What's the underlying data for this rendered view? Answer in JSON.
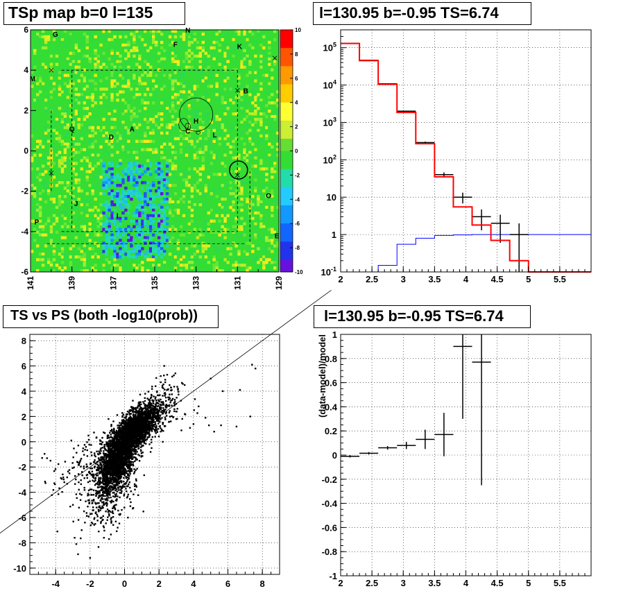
{
  "panels": {
    "map_title": "TSp map b=0 l=135",
    "spectrum_title": "l=130.95 b=-0.95 TS=6.74",
    "scatter_title": "TS vs PS (both -log10(prob))",
    "residual_title": "l=130.95 b=-0.95 TS=6.74"
  },
  "colors": {
    "data": "#000000",
    "model": "#ff0000",
    "background_model": "#0000ff",
    "map_field": "#33dd33"
  },
  "chart_data": [
    {
      "type": "heatmap",
      "title": "TSp map b=0 l=135",
      "x_ticks": [
        "141",
        "139",
        "137",
        "135",
        "133",
        "131",
        "129"
      ],
      "y_ticks": [
        "6",
        "4",
        "2",
        "0",
        "-2",
        "-4",
        "-6"
      ],
      "xlim": [
        141,
        129
      ],
      "ylim": [
        -6,
        6
      ],
      "colorbar": {
        "min": -10,
        "max": 10,
        "ticks": [
          "10",
          "8",
          "6",
          "4",
          "2",
          "0",
          "-2",
          "-4",
          "-6",
          "-8",
          "-10"
        ]
      },
      "source_labels": [
        {
          "label": "G",
          "l": 139.8,
          "b": 5.8
        },
        {
          "label": "N",
          "l": 133.4,
          "b": 6.0
        },
        {
          "label": "F",
          "l": 134.0,
          "b": 5.3
        },
        {
          "label": "K",
          "l": 130.9,
          "b": 5.2
        },
        {
          "label": "M",
          "l": 140.9,
          "b": 3.6
        },
        {
          "label": "B",
          "l": 130.6,
          "b": 3.0
        },
        {
          "label": "H",
          "l": 133.0,
          "b": 1.5
        },
        {
          "label": "Q",
          "l": 139.0,
          "b": 1.1
        },
        {
          "label": "A",
          "l": 136.1,
          "b": 1.1
        },
        {
          "label": "C",
          "l": 133.4,
          "b": 1.0
        },
        {
          "label": "L",
          "l": 132.1,
          "b": 0.8
        },
        {
          "label": "D",
          "l": 137.1,
          "b": 0.7
        },
        {
          "label": "O",
          "l": 129.5,
          "b": -2.2
        },
        {
          "label": "J",
          "l": 138.8,
          "b": -2.6
        },
        {
          "label": "I",
          "l": 136.8,
          "b": -3.2
        },
        {
          "label": "P",
          "l": 140.7,
          "b": -3.5
        },
        {
          "label": "E",
          "l": 129.1,
          "b": -4.2
        }
      ]
    },
    {
      "type": "line",
      "title": "l=130.95 b=-0.95 TS=6.74",
      "x_ticks": [
        "2",
        "2.5",
        "3",
        "3.5",
        "4",
        "4.5",
        "5",
        "5.5"
      ],
      "y_ticks": [
        "10^5",
        "10^4",
        "10^3",
        "10^2",
        "10",
        "1",
        "10^-1"
      ],
      "xlim": [
        2,
        6
      ],
      "ylim": [
        0.1,
        300000
      ],
      "yscale": "log",
      "grid": true,
      "bin_edges": [
        2.0,
        2.3,
        2.6,
        2.9,
        3.2,
        3.5,
        3.8,
        4.1,
        4.4,
        4.7,
        5.0,
        5.3,
        5.6,
        6.0
      ],
      "series": [
        {
          "values": [
            130000,
            45000,
            10500,
            1850,
            270,
            35,
            5.5,
            1.8,
            0.7,
            0.2,
            0.1,
            0.1,
            0.1
          ]
        },
        {
          "values": [
            null,
            0.07,
            0.15,
            0.55,
            0.8,
            0.95,
            0.98,
            1,
            1,
            1,
            1,
            1,
            1
          ]
        }
      ],
      "points": [
        {
          "x": 2.15,
          "y": 130000,
          "xerr": 0.15,
          "yerr": 400
        },
        {
          "x": 2.45,
          "y": 46000,
          "xerr": 0.15,
          "yerr": 250
        },
        {
          "x": 2.75,
          "y": 10800,
          "xerr": 0.15,
          "yerr": 110
        },
        {
          "x": 3.05,
          "y": 2000,
          "xerr": 0.15,
          "yerr": 45
        },
        {
          "x": 3.35,
          "y": 290,
          "xerr": 0.15,
          "yerr": 17
        },
        {
          "x": 3.65,
          "y": 40,
          "xerr": 0.15,
          "yerr": 6
        },
        {
          "x": 3.95,
          "y": 10,
          "xerr": 0.15,
          "yerr": 3.2
        },
        {
          "x": 4.25,
          "y": 3,
          "xerr": 0.15,
          "yerr": 1.7
        },
        {
          "x": 4.55,
          "y": 2,
          "xerr": 0.15,
          "yerr": 1.4
        },
        {
          "x": 4.85,
          "y": 1,
          "xerr": 0.15,
          "yerr": 0.99
        }
      ]
    },
    {
      "type": "scatter",
      "title": "TS vs PS (both -log10(prob))",
      "x_ticks": [
        "-4",
        "-2",
        "0",
        "2",
        "4",
        "6",
        "8"
      ],
      "y_ticks": [
        "8",
        "6",
        "4",
        "2",
        "0",
        "-2",
        "-4",
        "-6",
        "-8",
        "-10"
      ],
      "xlim": [
        -5.5,
        9
      ],
      "ylim": [
        -10.5,
        8.5
      ],
      "grid": true,
      "reference_line": {
        "slope": 1,
        "intercept": 0
      },
      "points": [
        [
          -4.5,
          -1.3
        ],
        [
          -4.3,
          -1.5
        ],
        [
          -3.9,
          -7.1
        ],
        [
          -3.5,
          -3.2
        ],
        [
          -3.2,
          -2.5
        ],
        [
          -3.0,
          -5.0
        ],
        [
          -2.9,
          -7.6
        ],
        [
          -2.8,
          -8.1
        ],
        [
          -2.7,
          -8.9
        ],
        [
          -2.5,
          -4.2
        ],
        [
          -2.3,
          -6.4
        ],
        [
          -2.2,
          -2.0
        ],
        [
          -2.0,
          -9.2
        ],
        [
          -1.9,
          -5.7
        ],
        [
          -1.7,
          -6.5
        ],
        [
          -1.6,
          -3.3
        ],
        [
          -1.5,
          -7.1
        ],
        [
          -1.4,
          -2.1
        ],
        [
          -1.3,
          -4.8
        ],
        [
          -1.2,
          -7.6
        ],
        [
          -1.1,
          -1.7
        ],
        [
          -1.0,
          -6.2
        ],
        [
          -0.9,
          -7.7
        ],
        [
          -0.8,
          -3.9
        ],
        [
          -0.7,
          -5.5
        ],
        [
          -0.6,
          -2.8
        ],
        [
          -0.5,
          -4.3
        ],
        [
          -0.4,
          -6.8
        ],
        [
          -0.3,
          -1.4
        ],
        [
          -0.2,
          -3.6
        ],
        [
          0.1,
          -0.5
        ],
        [
          0.3,
          0.8
        ],
        [
          0.6,
          1.4
        ],
        [
          0.9,
          2.6
        ],
        [
          1.2,
          3.8
        ],
        [
          1.5,
          2.1
        ],
        [
          1.8,
          4.4
        ],
        [
          2.1,
          5.2
        ],
        [
          2.3,
          6.0
        ],
        [
          2.4,
          3.5
        ],
        [
          2.6,
          2.9
        ],
        [
          2.8,
          3.4
        ],
        [
          3.0,
          1.8
        ],
        [
          3.1,
          4.2
        ],
        [
          3.3,
          0.9
        ],
        [
          3.5,
          2.2
        ],
        [
          3.8,
          1.1
        ],
        [
          4.0,
          1.4
        ],
        [
          4.3,
          2.8
        ],
        [
          4.7,
          1.9
        ],
        [
          4.9,
          1.3
        ],
        [
          5.0,
          5.0
        ],
        [
          5.2,
          0.8
        ],
        [
          5.6,
          1.3
        ],
        [
          5.7,
          4.0
        ],
        [
          6.5,
          1.2
        ],
        [
          6.7,
          4.1
        ],
        [
          7.3,
          2.0
        ],
        [
          7.4,
          6.1
        ],
        [
          7.6,
          5.8
        ]
      ],
      "clusters": [
        {
          "cx": -0.4,
          "cy": -1.5,
          "sx": 0.6,
          "sy": 1.3,
          "n": 1900,
          "rho": 0.6
        },
        {
          "cx": 0.6,
          "cy": 1.0,
          "sx": 0.65,
          "sy": 0.9,
          "n": 1900,
          "rho": 0.65
        },
        {
          "cx": -0.8,
          "cy": -4.0,
          "sx": 0.8,
          "sy": 1.6,
          "n": 250,
          "rho": 0.3
        },
        {
          "cx": 1.8,
          "cy": 2.3,
          "sx": 0.8,
          "sy": 1.2,
          "n": 260,
          "rho": 0.4
        },
        {
          "cx": -2.2,
          "cy": -1.8,
          "sx": 1.0,
          "sy": 1.2,
          "n": 140,
          "rho": 0.4
        }
      ]
    },
    {
      "type": "line",
      "title": "l=130.95 b=-0.95 TS=6.74",
      "ylabel": "(data-model)/model",
      "x_ticks": [
        "2",
        "2.5",
        "3",
        "3.5",
        "4",
        "4.5",
        "5",
        "5.5"
      ],
      "y_ticks": [
        "1",
        "0.8",
        "0.6",
        "0.4",
        "0.2",
        "0",
        "-0.2",
        "-0.4",
        "-0.6",
        "-0.8",
        "-1"
      ],
      "xlim": [
        2,
        6
      ],
      "ylim": [
        -1,
        1
      ],
      "grid": true,
      "points": [
        {
          "x": 2.15,
          "y": -0.01,
          "xerr": 0.15,
          "yerr": 0.01
        },
        {
          "x": 2.45,
          "y": 0.015,
          "xerr": 0.15,
          "yerr": 0.01
        },
        {
          "x": 2.75,
          "y": 0.06,
          "xerr": 0.15,
          "yerr": 0.015
        },
        {
          "x": 3.05,
          "y": 0.08,
          "xerr": 0.15,
          "yerr": 0.03
        },
        {
          "x": 3.35,
          "y": 0.13,
          "xerr": 0.15,
          "yerr": 0.08
        },
        {
          "x": 3.65,
          "y": 0.17,
          "xerr": 0.15,
          "yerr": 0.18
        },
        {
          "x": 3.95,
          "y": 0.9,
          "xerr": 0.15,
          "yerr": 0.6
        },
        {
          "x": 4.25,
          "y": 0.77,
          "xerr": 0.15,
          "yerr": 1.02
        }
      ]
    }
  ]
}
